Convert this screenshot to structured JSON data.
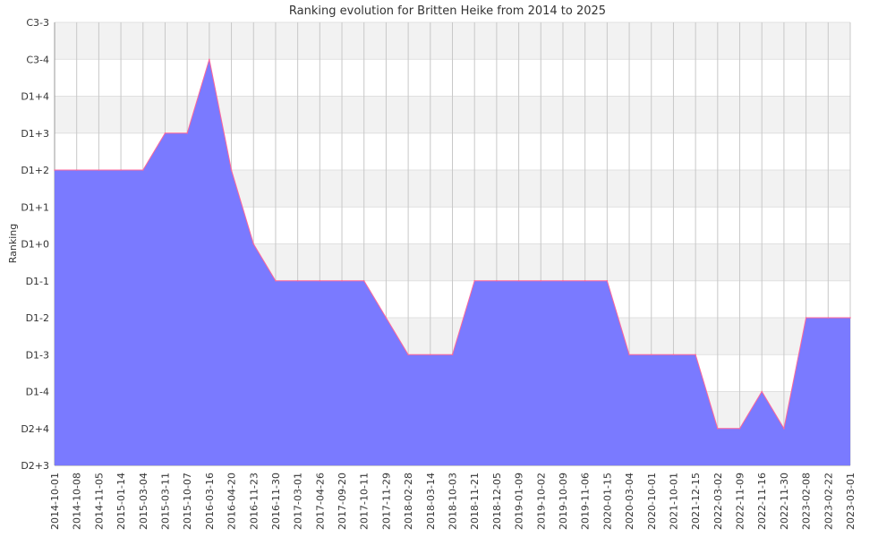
{
  "chart_data": {
    "type": "area",
    "title": "Ranking evolution for Britten Heike from 2014 to 2025",
    "xlabel": "",
    "ylabel": "Ranking",
    "ylevels": [
      "D2+3",
      "D2+4",
      "D1-4",
      "D1-3",
      "D1-2",
      "D1-1",
      "D1+0",
      "D1+1",
      "D1+2",
      "D1+3",
      "D1+4",
      "C3-4",
      "C3-3"
    ],
    "grid": true,
    "legend": "none",
    "colors": {
      "fill": "#7a7aff",
      "line": "#ff6699",
      "band": "#f2f2f2",
      "grid": "#c8c8c8"
    },
    "series": [
      {
        "x": [
          "2014-10-01",
          "2014-10-08",
          "2014-11-05",
          "2015-01-14",
          "2015-03-04",
          "2015-03-11",
          "2015-10-07",
          "2016-03-16",
          "2016-04-20",
          "2016-11-23",
          "2016-11-30",
          "2017-03-01",
          "2017-04-26",
          "2017-09-20",
          "2017-10-11",
          "2017-11-29",
          "2018-02-28",
          "2018-03-14",
          "2018-10-03",
          "2018-11-21",
          "2018-12-05",
          "2019-01-09",
          "2019-10-02",
          "2019-10-09",
          "2019-11-06",
          "2020-01-15",
          "2020-03-04",
          "2020-10-01",
          "2021-10-01",
          "2021-12-15",
          "2022-03-02",
          "2022-11-09",
          "2022-11-16",
          "2022-11-30",
          "2023-02-08",
          "2023-02-22",
          "2023-03-01"
        ],
        "y": [
          "D1+2",
          "D1+2",
          "D1+2",
          "D1+2",
          "D1+2",
          "D1+3",
          "D1+3",
          "C3-4",
          "D1+2",
          "D1+0",
          "D1-1",
          "D1-1",
          "D1-1",
          "D1-1",
          "D1-1",
          "D1-2",
          "D1-3",
          "D1-3",
          "D1-3",
          "D1-1",
          "D1-1",
          "D1-1",
          "D1-1",
          "D1-1",
          "D1-1",
          "D1-1",
          "D1-3",
          "D1-3",
          "D1-3",
          "D1-3",
          "D2+4",
          "D2+4",
          "D1-4",
          "D2+4",
          "D1-2",
          "D1-2",
          "D1-2"
        ]
      }
    ]
  }
}
